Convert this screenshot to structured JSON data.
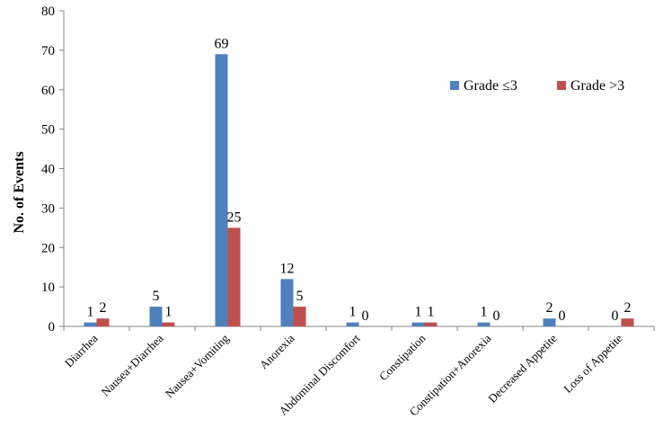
{
  "chart_data": {
    "type": "bar",
    "title": "",
    "xlabel": "",
    "ylabel": "No. of Events",
    "ylim": [
      0,
      80
    ],
    "yticks": [
      0,
      10,
      20,
      30,
      40,
      50,
      60,
      70,
      80
    ],
    "grid": false,
    "legend_position": "top-right",
    "categories": [
      "Diarrhea",
      "Nausea+Diarrhea",
      "Nausea+Vomiting",
      "Anorexia",
      "Abdominal Discomfort",
      "Constipation",
      "Constipation+Anorexia",
      "Decreased Appetite",
      "Loss of Appetite"
    ],
    "series": [
      {
        "name": "Grade ≤3",
        "color": "#4F81BD",
        "values": [
          1,
          5,
          69,
          12,
          1,
          1,
          1,
          2,
          0
        ]
      },
      {
        "name": "Grade >3",
        "color": "#C0504D",
        "values": [
          2,
          1,
          25,
          5,
          0,
          1,
          0,
          0,
          2
        ]
      }
    ]
  }
}
